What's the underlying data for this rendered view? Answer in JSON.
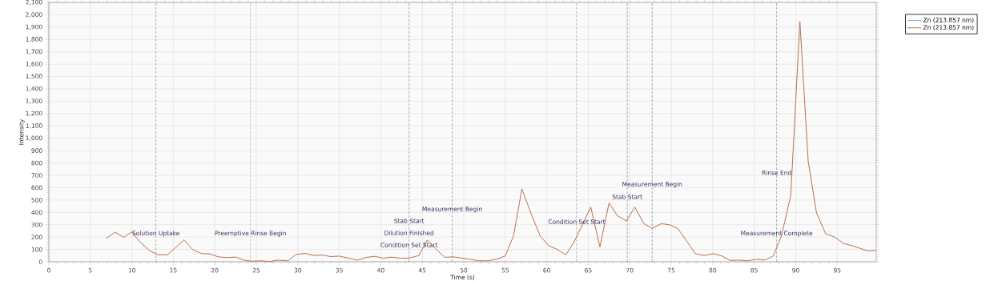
{
  "chart_data": {
    "type": "line",
    "xlabel": "Time (s)",
    "ylabel": "Intensity",
    "x": [
      6.9,
      8.0,
      9.0,
      10.0,
      11.0,
      12.1,
      13.1,
      14.3,
      16.3,
      17.3,
      18.4,
      19.4,
      20.4,
      21.5,
      22.5,
      23.5,
      24.5,
      25.6,
      26.6,
      27.6,
      28.8,
      29.8,
      30.9,
      31.9,
      32.9,
      34.0,
      35.0,
      37.2,
      38.3,
      39.3,
      40.3,
      41.3,
      42.4,
      43.4,
      44.6,
      45.6,
      46.6,
      47.7,
      48.7,
      49.8,
      50.8,
      51.8,
      52.9,
      53.9,
      55.0,
      56.0,
      57.0,
      58.1,
      59.2,
      60.2,
      61.2,
      62.3,
      63.3,
      65.3,
      66.4,
      67.5,
      68.5,
      69.6,
      70.6,
      71.7,
      72.7,
      73.8,
      74.8,
      75.8,
      76.9,
      77.9,
      79.0,
      80.1,
      81.1,
      82.1,
      83.2,
      84.2,
      85.2,
      86.3,
      87.3,
      88.3,
      89.4,
      90.5,
      91.5,
      92.5,
      93.6,
      94.6,
      95.8,
      96.9,
      98.7,
      99.6
    ],
    "series": [
      {
        "name": "Zn (213.857 nm)",
        "color": "#7f9be0",
        "values": [
          null,
          null,
          null,
          null,
          null,
          null,
          null,
          null,
          null,
          null,
          null,
          null,
          null,
          null,
          null,
          null,
          null,
          null,
          null,
          null,
          null,
          null,
          null,
          null,
          null,
          null,
          null,
          null,
          null,
          null,
          null,
          null,
          null,
          null,
          null,
          null,
          null,
          null,
          null,
          null,
          null,
          null,
          null,
          null,
          null,
          null,
          null,
          null,
          null,
          null,
          null,
          null,
          null,
          null,
          null,
          null,
          null,
          null,
          null,
          null,
          null,
          null,
          null,
          null,
          null,
          null,
          null,
          null,
          null,
          null,
          null,
          null,
          null,
          null,
          null,
          null,
          null,
          null,
          null,
          null,
          null,
          null,
          null,
          null,
          null,
          null
        ]
      },
      {
        "name": "Zn (213.857 nm)",
        "color": "#b0603c",
        "values": [
          190,
          240,
          198,
          242,
          160,
          92,
          57,
          57,
          178,
          100,
          66,
          64,
          40,
          34,
          38,
          13,
          4,
          8,
          2,
          13,
          8,
          60,
          68,
          51,
          55,
          42,
          46,
          13,
          36,
          44,
          29,
          38,
          29,
          29,
          51,
          176,
          106,
          36,
          40,
          29,
          20,
          8,
          8,
          20,
          47,
          212,
          590,
          392,
          209,
          132,
          102,
          57,
          161,
          443,
          121,
          476,
          374,
          330,
          443,
          309,
          271,
          308,
          300,
          268,
          163,
          66,
          51,
          66,
          47,
          11,
          13,
          8,
          20,
          15,
          47,
          216,
          537,
          1944,
          815,
          396,
          227,
          203,
          148,
          128,
          88,
          92
        ]
      }
    ],
    "xlim": [
      0,
      99.7
    ],
    "ylim": [
      0,
      2100
    ],
    "xticks": [
      0,
      5,
      10,
      15,
      20,
      25,
      30,
      35,
      40,
      45,
      50,
      55,
      60,
      65,
      70,
      75,
      80,
      85,
      90,
      95
    ],
    "yticks": [
      0,
      100,
      200,
      300,
      400,
      500,
      600,
      700,
      800,
      900,
      {
        "value": 1000,
        "label": "1,000"
      },
      {
        "value": 1100,
        "label": "1,100"
      },
      {
        "value": 1200,
        "label": "1,200"
      },
      {
        "value": 1300,
        "label": "1,300"
      },
      {
        "value": 1400,
        "label": "1,400"
      },
      {
        "value": 1500,
        "label": "1,500"
      },
      {
        "value": 1600,
        "label": "1,600"
      },
      {
        "value": 1700,
        "label": "1,700"
      },
      {
        "value": 1800,
        "label": "1,800"
      },
      {
        "value": 1900,
        "label": "1,900"
      },
      {
        "value": 2000,
        "label": "2,000"
      },
      {
        "value": 2100,
        "label": "2,100"
      }
    ],
    "ref_lines": [
      {
        "axis": "x",
        "value": 12.9,
        "color": "#707070",
        "line_style": "dashed"
      },
      {
        "axis": "x",
        "value": 24.3,
        "color": "#707070",
        "line_style": "dashed"
      },
      {
        "axis": "x",
        "value": 43.4,
        "color": "#707070",
        "line_style": "dashed"
      },
      {
        "axis": "x",
        "value": 48.6,
        "color": "#707070",
        "line_style": "dashed"
      },
      {
        "axis": "x",
        "value": 63.6,
        "color": "#707070",
        "line_style": "dashed"
      },
      {
        "axis": "x",
        "value": 69.7,
        "color": "#707070",
        "line_style": "dashed"
      },
      {
        "axis": "x",
        "value": 72.7,
        "color": "#707070",
        "line_style": "dashed"
      },
      {
        "axis": "x",
        "value": 87.7,
        "color": "#707070",
        "line_style": "dashed"
      }
    ],
    "annotations": [
      {
        "text": "Solution Uptake",
        "x": 12.9,
        "y": 228
      },
      {
        "text": "Preemptive Rinse Begin",
        "x": 24.3,
        "y": 228
      },
      {
        "text": "Condition Set Start",
        "x": 43.4,
        "y": 137
      },
      {
        "text": "Dilution Finished",
        "x": 43.4,
        "y": 234
      },
      {
        "text": "Stab Start",
        "x": 43.4,
        "y": 332
      },
      {
        "text": "Measurement Begin",
        "x": 48.6,
        "y": 423
      },
      {
        "text": "Condition Set Start",
        "x": 63.6,
        "y": 325
      },
      {
        "text": "Stab Start",
        "x": 69.7,
        "y": 527
      },
      {
        "text": "Measurement Begin",
        "x": 72.7,
        "y": 624
      },
      {
        "text": "Rinse End",
        "x": 87.7,
        "y": 722
      },
      {
        "text": "Measurement Complete",
        "x": 87.7,
        "y": 228
      }
    ],
    "grid": true,
    "legend": "top right",
    "marker": "none",
    "line_style": "solid"
  }
}
